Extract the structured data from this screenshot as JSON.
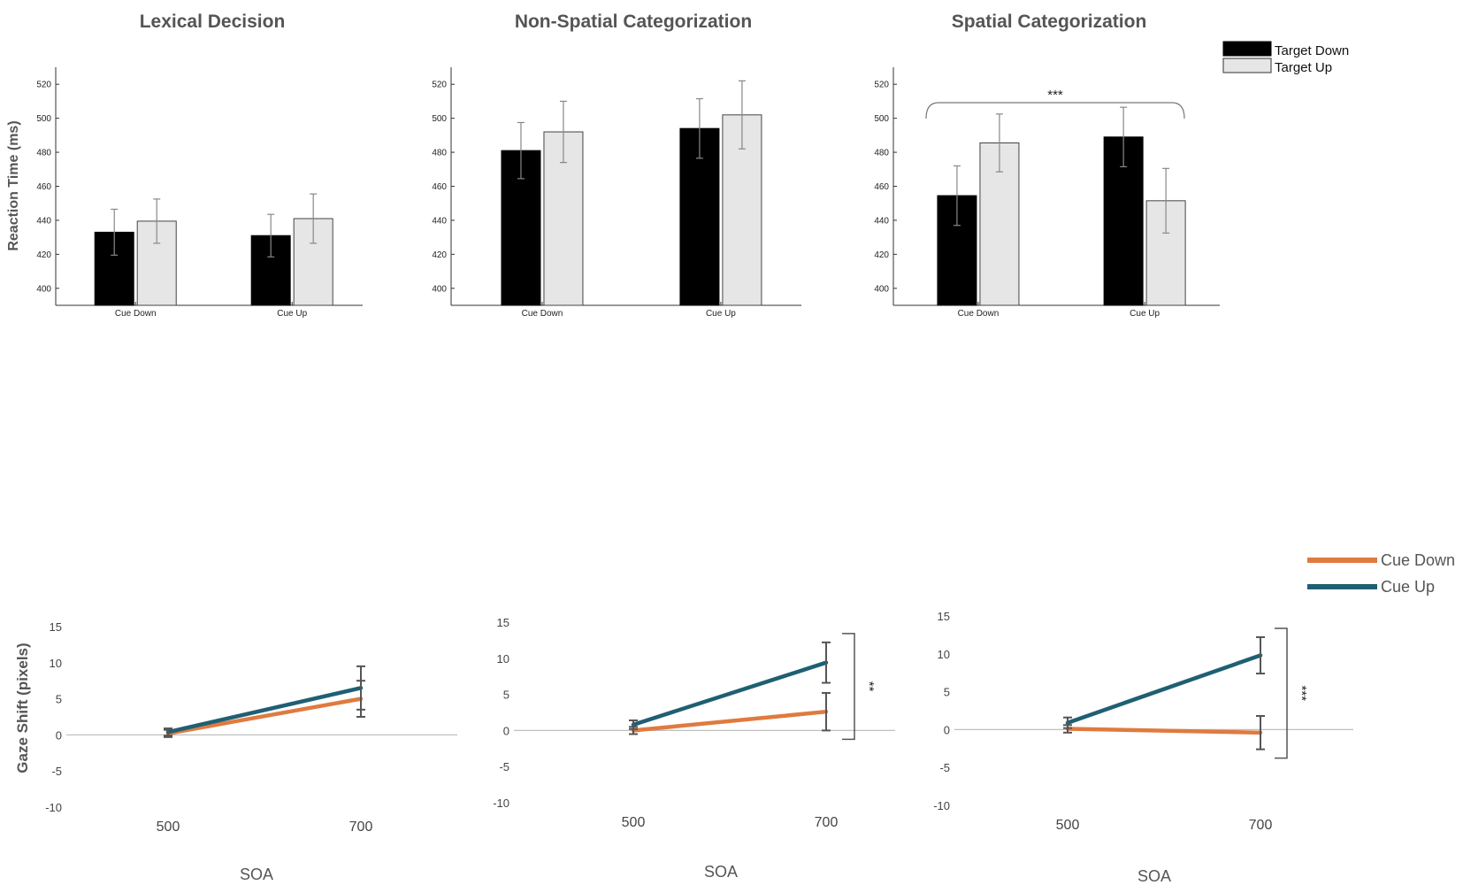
{
  "colors": {
    "target_down": "#000000",
    "target_up": "#e6e6e6",
    "cue_down_line": "#e07a3f",
    "cue_up_line": "#1f5f73",
    "axis": "#333333",
    "text": "#555555"
  },
  "bar_legend": {
    "items": [
      "Target Down",
      "Target Up"
    ]
  },
  "line_legend": {
    "items": [
      "Cue Down",
      "Cue Up"
    ]
  },
  "rt_ylabel": "Reaction Time (ms)",
  "gaze_ylabel": "Gaze Shift (pixels)",
  "chart_data": [
    {
      "type": "bar",
      "title": "Lexical Decision",
      "categories": [
        "Cue Down",
        "Cue Up"
      ],
      "series": [
        {
          "name": "Target Down",
          "values": [
            433,
            431
          ],
          "errors": [
            13.5,
            12.5
          ]
        },
        {
          "name": "Target Up",
          "values": [
            439.5,
            441
          ],
          "errors": [
            13,
            14.5
          ]
        }
      ],
      "ylim": [
        390,
        530
      ],
      "yticks": [
        400,
        420,
        440,
        460,
        480,
        500,
        520
      ],
      "ylabel": "Reaction Time (ms)",
      "annotation": null
    },
    {
      "type": "bar",
      "title": "Non-Spatial Categorization",
      "categories": [
        "Cue Down",
        "Cue Up"
      ],
      "series": [
        {
          "name": "Target Down",
          "values": [
            481,
            494
          ],
          "errors": [
            16.5,
            17.5
          ]
        },
        {
          "name": "Target Up",
          "values": [
            492,
            502
          ],
          "errors": [
            18,
            20
          ]
        }
      ],
      "ylim": [
        390,
        530
      ],
      "yticks": [
        400,
        420,
        440,
        460,
        480,
        500,
        520
      ],
      "ylabel": "",
      "annotation": null
    },
    {
      "type": "bar",
      "title": "Spatial Categorization",
      "categories": [
        "Cue Down",
        "Cue Up"
      ],
      "series": [
        {
          "name": "Target Down",
          "values": [
            454.5,
            489
          ],
          "errors": [
            17.5,
            17.5
          ]
        },
        {
          "name": "Target Up",
          "values": [
            485.5,
            451.5
          ],
          "errors": [
            17,
            19
          ]
        }
      ],
      "ylim": [
        390,
        530
      ],
      "yticks": [
        400,
        420,
        440,
        460,
        480,
        500,
        520
      ],
      "ylabel": "",
      "annotation": "***"
    },
    {
      "type": "line",
      "title": "",
      "x": [
        "500",
        "700"
      ],
      "series": [
        {
          "name": "Cue Down",
          "values": [
            0.2,
            5.0
          ],
          "errors": [
            0.5,
            2.5
          ]
        },
        {
          "name": "Cue Up",
          "values": [
            0.4,
            6.5
          ],
          "errors": [
            0.5,
            3.0
          ]
        }
      ],
      "ylim": [
        -10,
        15
      ],
      "yticks": [
        -10,
        -5,
        0,
        5,
        10,
        15
      ],
      "xlabel": "SOA",
      "ylabel": "Gaze Shift (pixels)",
      "annotation": null
    },
    {
      "type": "line",
      "title": "",
      "x": [
        "500",
        "700"
      ],
      "series": [
        {
          "name": "Cue Down",
          "values": [
            0.0,
            2.6
          ],
          "errors": [
            0.5,
            2.6
          ]
        },
        {
          "name": "Cue Up",
          "values": [
            0.8,
            9.4
          ],
          "errors": [
            0.6,
            2.8
          ]
        }
      ],
      "ylim": [
        -10,
        15
      ],
      "yticks": [
        -10,
        -5,
        0,
        5,
        10,
        15
      ],
      "xlabel": "SOA",
      "ylabel": "",
      "annotation": "**"
    },
    {
      "type": "line",
      "title": "",
      "x": [
        "500",
        "700"
      ],
      "series": [
        {
          "name": "Cue Down",
          "values": [
            0.1,
            -0.4
          ],
          "errors": [
            0.5,
            2.2
          ]
        },
        {
          "name": "Cue Up",
          "values": [
            0.9,
            9.8
          ],
          "errors": [
            0.7,
            2.4
          ]
        }
      ],
      "ylim": [
        -10,
        15
      ],
      "yticks": [
        -10,
        -5,
        0,
        5,
        10,
        15
      ],
      "xlabel": "SOA",
      "ylabel": "",
      "annotation": "***"
    }
  ]
}
